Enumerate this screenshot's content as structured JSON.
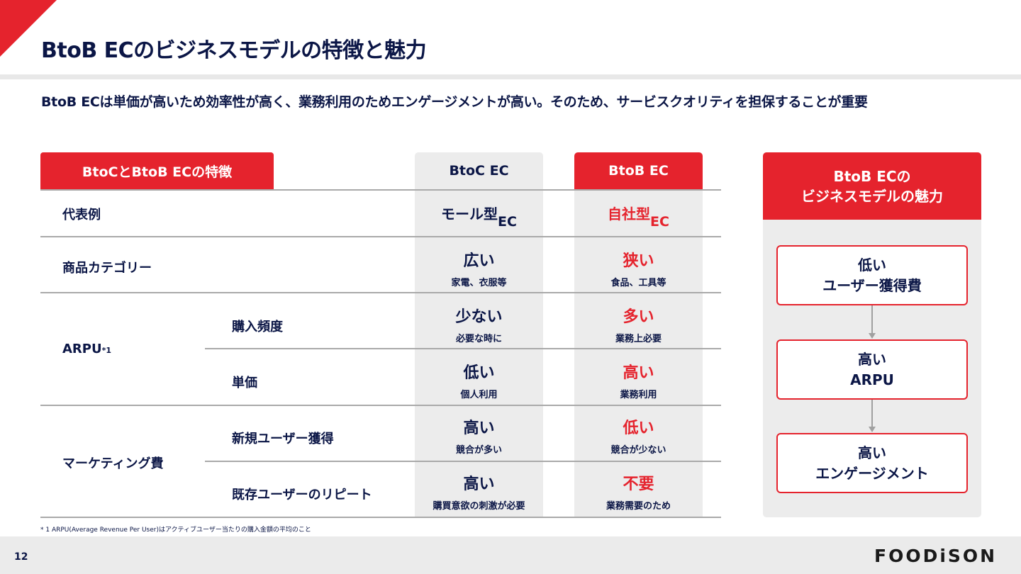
{
  "title": "BtoB ECのビジネスモデルの特徴と魅力",
  "subtitle": "BtoB ECは単価が高いため効率性が高く、業務利用のためエンゲージメントが高い。そのため、サービスクオリティを担保することが重要",
  "table": {
    "tab": "BtoCとBtoB ECの特徴",
    "col_btoc": "BtoC EC",
    "col_btob": "BtoB EC",
    "rows": [
      {
        "label": "代表例",
        "sub": "",
        "btoc": {
          "big": "モール型",
          "suffix": "EC",
          "small": ""
        },
        "btob": {
          "big": "自社型",
          "suffix": "EC",
          "small": ""
        }
      },
      {
        "label": "商品カテゴリー",
        "sub": "",
        "btoc": {
          "big": "広い",
          "small": "家電、衣服等"
        },
        "btob": {
          "big": "狭い",
          "small": "食品、工具等"
        }
      },
      {
        "label": "ARPU",
        "label_note": "*1",
        "sub": "購入頻度",
        "btoc": {
          "big": "少ない",
          "small": "必要な時に"
        },
        "btob": {
          "big": "多い",
          "small": "業務上必要"
        }
      },
      {
        "label": "",
        "sub": "単価",
        "btoc": {
          "big": "低い",
          "small": "個人利用"
        },
        "btob": {
          "big": "高い",
          "small": "業務利用"
        }
      },
      {
        "label": "マーケティング費",
        "sub": "新規ユーザー獲得",
        "btoc": {
          "big": "高い",
          "small": "競合が多い"
        },
        "btob": {
          "big": "低い",
          "small": "競合が少ない"
        }
      },
      {
        "label": "",
        "sub": "既存ユーザーのリピート",
        "btoc": {
          "big": "高い",
          "small": "購買意欲の刺激が必要"
        },
        "btob": {
          "big": "不要",
          "small": "業務需要のため"
        }
      }
    ]
  },
  "panel": {
    "title_1": "BtoB ECの",
    "title_2": "ビジネスモデルの魅力",
    "boxes": [
      {
        "l1": "低い",
        "l2": "ユーザー獲得費"
      },
      {
        "l1": "高い",
        "l2": "ARPU"
      },
      {
        "l1": "高い",
        "l2": "エンゲージメント"
      }
    ]
  },
  "footnote": "* 1 ARPU(Average Revenue Per User)はアクティブユーザー当たりの購入金額の平均のこと",
  "page_number": "12",
  "logo": "FOODiSON",
  "colors": {
    "accent": "#e5232d",
    "text": "#0b1646",
    "panel": "#ececec"
  }
}
